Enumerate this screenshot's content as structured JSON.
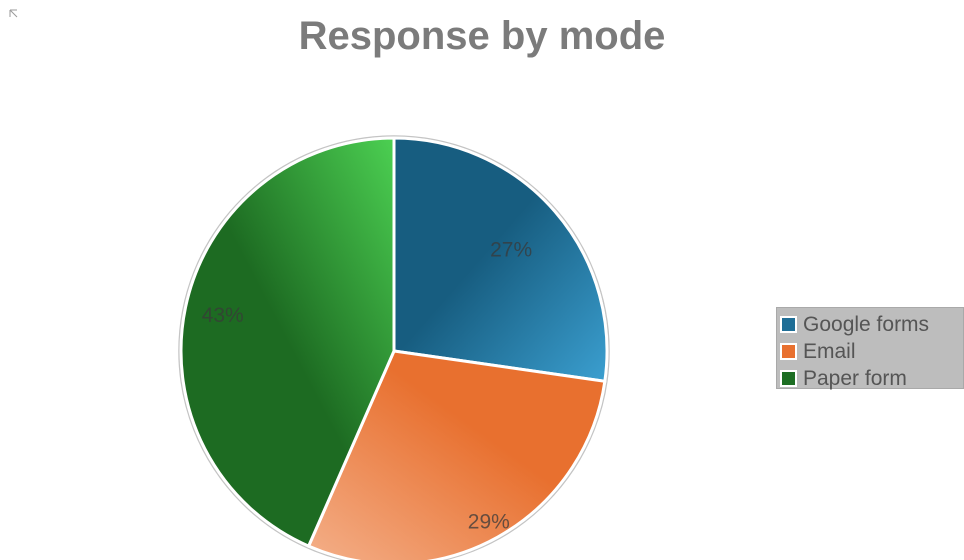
{
  "chart_data": {
    "type": "pie",
    "title": "Response by mode",
    "categories": [
      "Google forms",
      "Email",
      "Paper form"
    ],
    "values": [
      27,
      29,
      43
    ],
    "data_labels": [
      "27%",
      "29%",
      "43%"
    ],
    "colors": [
      "#1f6e96",
      "#e8702f",
      "#1d6e23"
    ],
    "legend": "right"
  },
  "icons": {
    "corner": "grip-icon"
  }
}
